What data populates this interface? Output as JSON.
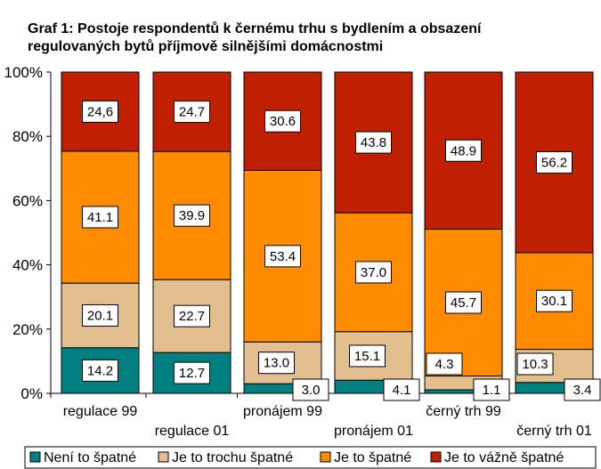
{
  "chart_data": {
    "type": "bar",
    "stacked": true,
    "percent": true,
    "title_lines": [
      "Graf 1: Postoje respondentů k černému trhu s bydlením a obsazení",
      "regulovaných bytů příjmově silnějšími domácnostmi"
    ],
    "categories": [
      "regulace 99",
      "regulace 01",
      "pronájem 99",
      "pronájem 01",
      "černý trh 99",
      "černý trh 01"
    ],
    "series": [
      {
        "name": "Není to špatné",
        "color": "#008080",
        "values": [
          14.2,
          12.7,
          3.0,
          4.1,
          1.1,
          3.4
        ],
        "labels": [
          "14.2",
          "12.7",
          "3.0",
          "4.1",
          "1.1",
          "3.4"
        ]
      },
      {
        "name": "Je to trochu špatné",
        "color": "#E3BE8F",
        "values": [
          20.1,
          22.7,
          13.0,
          15.1,
          4.3,
          10.3
        ],
        "labels": [
          "20.1",
          "22.7",
          "13.0",
          "15.1",
          "4.3",
          "10.3"
        ]
      },
      {
        "name": "Je to špatné",
        "color": "#FF8C00",
        "values": [
          41.1,
          39.9,
          53.4,
          37.0,
          45.7,
          30.1
        ],
        "labels": [
          "41.1",
          "39.9",
          "53.4",
          "37.0",
          "45.7",
          "30.1"
        ]
      },
      {
        "name": "Je to vážně špatné",
        "color": "#C02000",
        "values": [
          24.6,
          24.7,
          30.6,
          43.8,
          48.9,
          56.2
        ],
        "labels": [
          "24,6",
          "24.7",
          "30.6",
          "43.8",
          "48.9",
          "56.2"
        ]
      }
    ],
    "y_ticks": [
      "0%",
      "20%",
      "40%",
      "60%",
      "80%",
      "100%"
    ],
    "ylim": [
      0,
      100
    ],
    "grid": false,
    "legend_position": "bottom"
  }
}
